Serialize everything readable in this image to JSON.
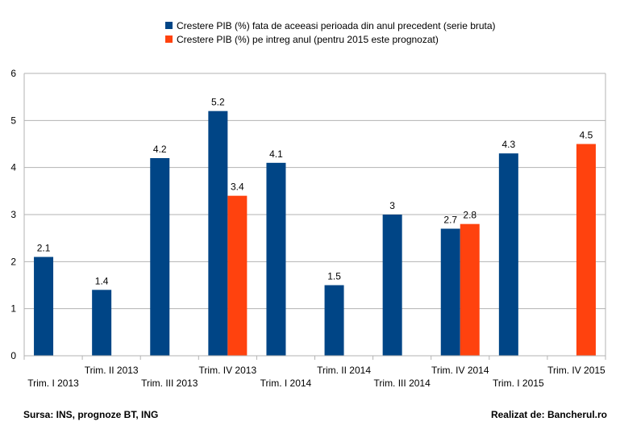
{
  "chart_data": {
    "type": "bar",
    "categories": [
      "Trim. I 2013",
      "Trim. II 2013",
      "Trim. III 2013",
      "Trim. IV 2013",
      "Trim. I 2014",
      "Trim. II 2014",
      "Trim. III 2014",
      "Trim. IV 2014",
      "Trim. I 2015",
      "Trim. IV 2015"
    ],
    "series": [
      {
        "name": "Crestere PIB (%) fata de aceeasi perioada din anul precedent (serie bruta)",
        "color": "#004586",
        "values": [
          2.1,
          1.4,
          4.2,
          5.2,
          4.1,
          1.5,
          3,
          2.7,
          4.3,
          null
        ]
      },
      {
        "name": "Crestere PIB (%) pe intreg anul (pentru 2015 este prognozat)",
        "color": "#ff420e",
        "values": [
          null,
          null,
          null,
          3.4,
          null,
          null,
          null,
          2.8,
          null,
          4.5
        ]
      }
    ],
    "data_labels": {
      "s0": [
        "2.1",
        "1.4",
        "4.2",
        "5.2",
        "4.1",
        "1.5",
        "3",
        "2.7",
        "4.3",
        ""
      ],
      "s1": [
        "",
        "",
        "",
        "3.4",
        "",
        "",
        "",
        "2.8",
        "",
        "4.5"
      ]
    },
    "yticks": [
      "0",
      "1",
      "2",
      "3",
      "4",
      "5",
      "6"
    ],
    "ylim": [
      0,
      6
    ],
    "grid": true,
    "legend_position": "top"
  },
  "footer": {
    "source": "Sursa: INS, prognoze BT, ING",
    "credit": "Realizat de: Bancherul.ro"
  }
}
